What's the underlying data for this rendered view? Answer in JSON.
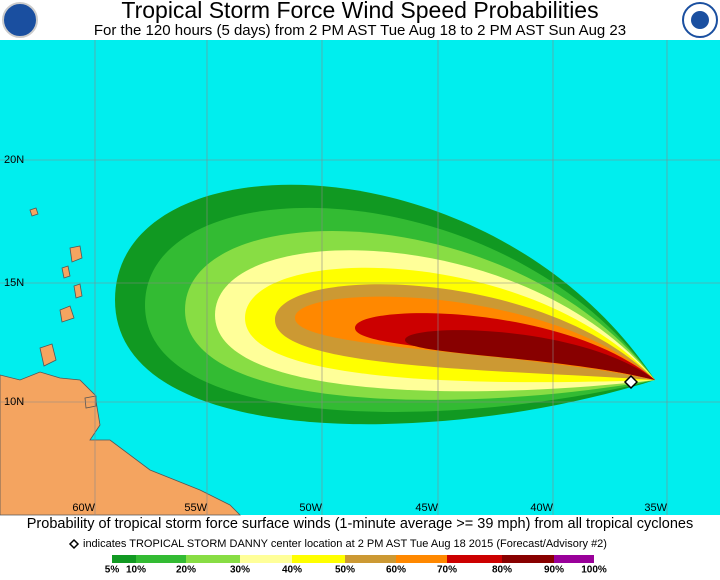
{
  "header": {
    "title": "Tropical Storm Force Wind Speed Probabilities",
    "subtitle": "For the 120 hours (5 days) from 2 PM AST Tue Aug 18 to 2 PM AST Sun Aug 23"
  },
  "map": {
    "lat_labels": [
      "20N",
      "15N",
      "10N"
    ],
    "lon_labels": [
      "60W",
      "55W",
      "50W",
      "45W",
      "40W",
      "35W"
    ]
  },
  "footer": {
    "caption": "Probability of tropical storm force surface winds (1-minute average >= 39 mph) from all tropical cyclones",
    "marker_note": "indicates TROPICAL STORM DANNY center location at 2 PM AST Tue Aug 18 2015 (Forecast/Advisory #2)"
  },
  "legend": {
    "labels": [
      "5%",
      "10%",
      "20%",
      "30%",
      "40%",
      "50%",
      "60%",
      "70%",
      "80%",
      "90%",
      "100%"
    ],
    "colors": [
      "#119922",
      "#33bb33",
      "#88dd44",
      "#ffff99",
      "#ffff00",
      "#cc9933",
      "#ff8800",
      "#cc0000",
      "#880000",
      "#990099"
    ]
  }
}
